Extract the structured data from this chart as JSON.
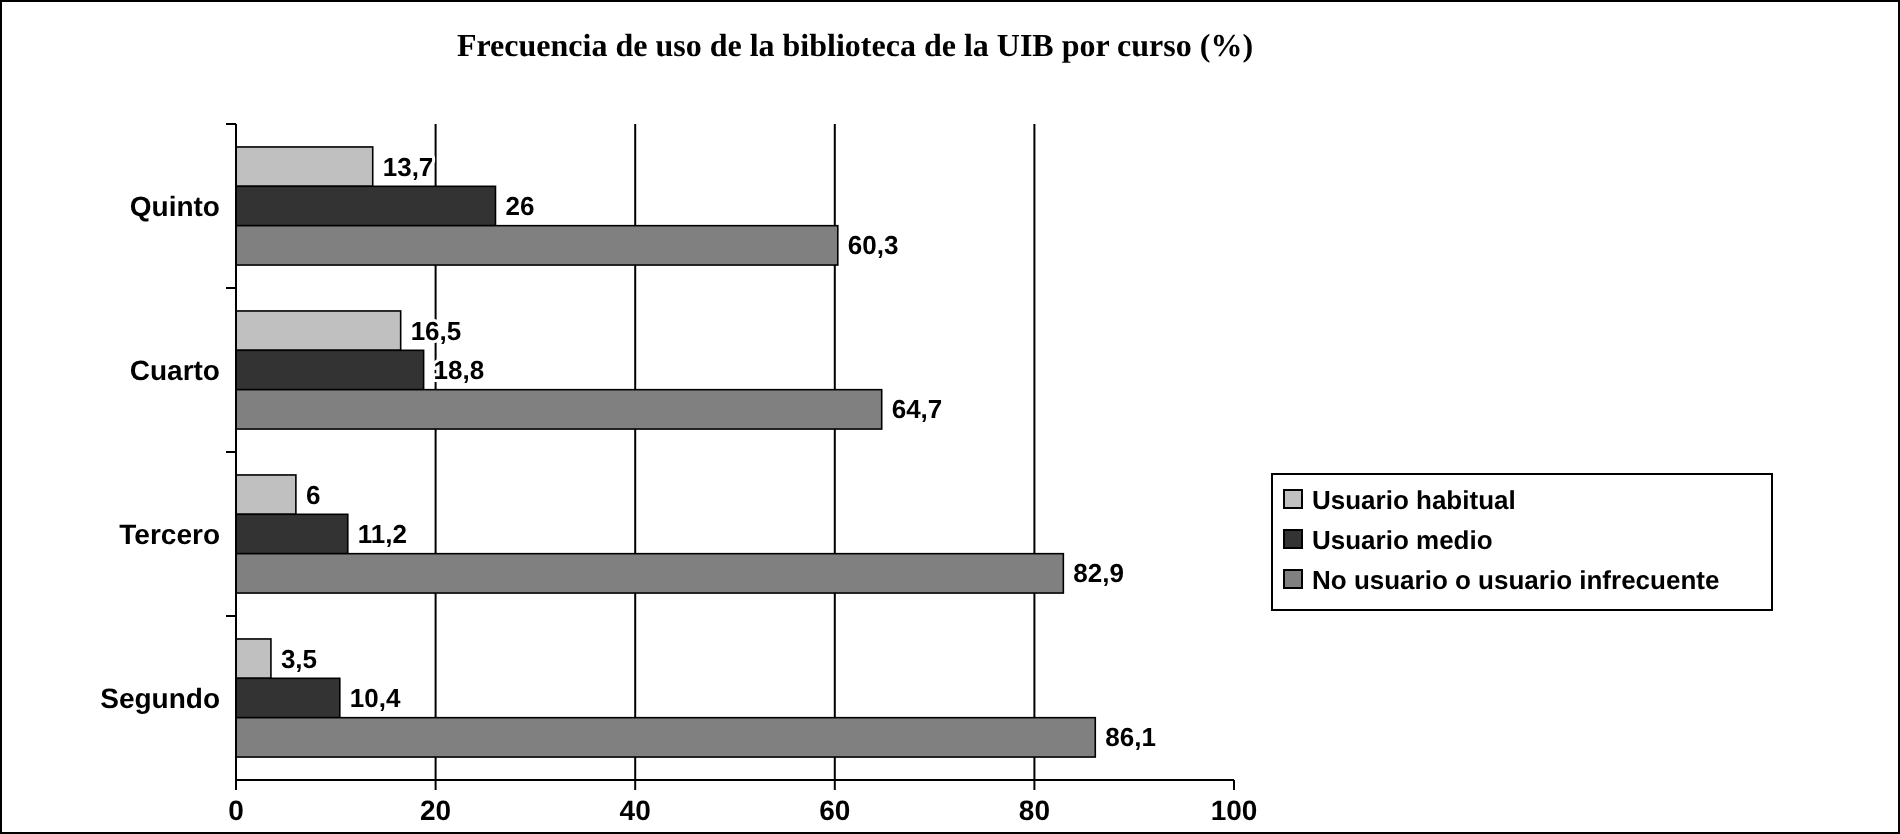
{
  "chart_data": {
    "type": "bar",
    "orientation": "horizontal",
    "title": "Frecuencia de uso de la biblioteca de la UIB por curso (%)",
    "categories": [
      "Quinto",
      "Cuarto",
      "Tercero",
      "Segundo"
    ],
    "series": [
      {
        "name": "Usuario habitual",
        "color": "#c0c0c0",
        "values": [
          13.7,
          16.5,
          6,
          3.5
        ],
        "value_labels": [
          "13,7",
          "16,5",
          "6",
          "3,5"
        ]
      },
      {
        "name": "Usuario medio",
        "color": "#333333",
        "values": [
          26,
          18.8,
          11.2,
          10.4
        ],
        "value_labels": [
          "26",
          "18,8",
          "11,2",
          "10,4"
        ]
      },
      {
        "name": "No usuario o usuario infrecuente",
        "color": "#808080",
        "values": [
          60.3,
          64.7,
          82.9,
          86.1
        ],
        "value_labels": [
          "60,3",
          "64,7",
          "82,9",
          "86,1"
        ]
      }
    ],
    "xlim": [
      0,
      100
    ],
    "xticks": [
      0,
      20,
      40,
      60,
      80,
      100
    ],
    "grid": "x",
    "legend": "right"
  }
}
